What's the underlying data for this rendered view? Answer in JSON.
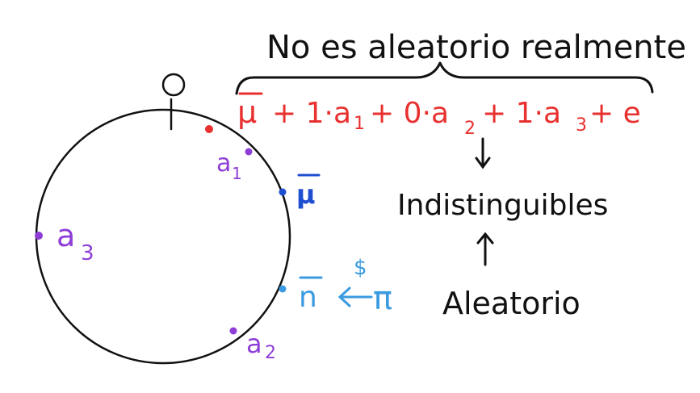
{
  "colors": {
    "ink": "#111111",
    "red": "#e8312f",
    "purple": "#8e3ed6",
    "blue": "#1f4fd1",
    "lightblue": "#3a9be0"
  },
  "brace_label": "No es aleatorio realmente",
  "equation": {
    "mu": "μ",
    "t1": "+ 1·a",
    "s1": "1",
    "t2": "+ 0·a",
    "s2": "2",
    "t3": "+ 1·a",
    "s3": "3",
    "t4": "+ e"
  },
  "indistinguibles": "Indistinguibles",
  "aleatorio": "Aleatorio",
  "labels": {
    "a1": {
      "base": "a",
      "sub": "1"
    },
    "a2": {
      "base": "a",
      "sub": "2"
    },
    "a3": {
      "base": "a",
      "sub": "3"
    },
    "mu_bar": "μ",
    "n_bar": "n",
    "dollar": "$",
    "pi": "π"
  }
}
